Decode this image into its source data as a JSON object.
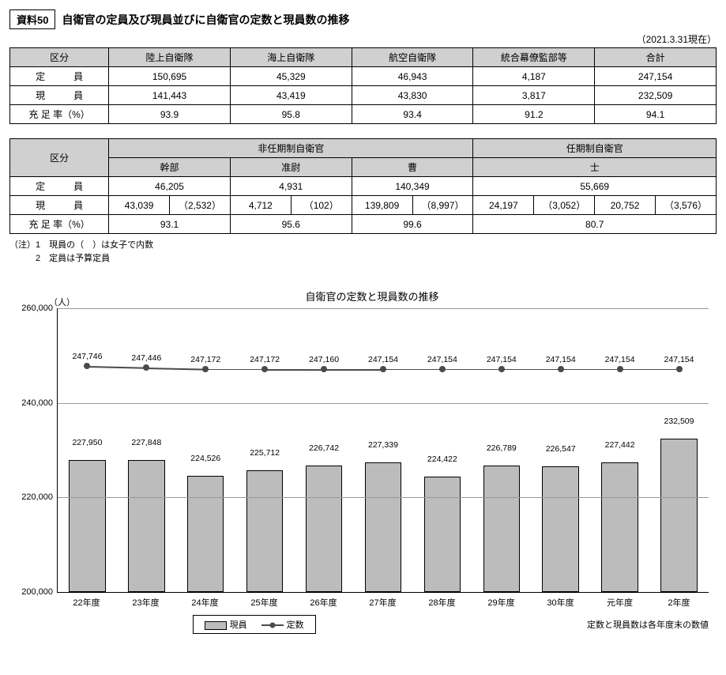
{
  "doc": {
    "label": "資料50",
    "title": "自衛官の定員及び現員並びに自衛官の定数と現員数の推移",
    "date_note": "（2021.3.31現在）"
  },
  "table1": {
    "col_headers": [
      "区分",
      "陸上自衛隊",
      "海上自衛隊",
      "航空自衛隊",
      "統合幕僚監部等",
      "合計"
    ],
    "rows": [
      {
        "label": "定　　　員",
        "cells": [
          "150,695",
          "45,329",
          "46,943",
          "4,187",
          "247,154"
        ]
      },
      {
        "label": "現　　　員",
        "cells": [
          "141,443",
          "43,419",
          "43,830",
          "3,817",
          "232,509"
        ]
      },
      {
        "label": "充 足 率（%）",
        "cells": [
          "93.9",
          "95.8",
          "93.4",
          "91.2",
          "94.1"
        ]
      }
    ]
  },
  "table2": {
    "kubun": "区分",
    "group_nonterm": "非任期制自衛官",
    "group_term": "任期制自衛官",
    "subheads": [
      "幹部",
      "准尉",
      "曹",
      "士"
    ],
    "teiin_label": "定　　　員",
    "teiin": [
      "46,205",
      "4,931",
      "140,349",
      "55,669"
    ],
    "genin_label": "現　　　員",
    "genin_pairs": [
      [
        "43,039",
        "（2,532）"
      ],
      [
        "4,712",
        "（102）"
      ],
      [
        "139,809",
        "（8,997）"
      ],
      [
        "24,197",
        "（3,052）"
      ],
      [
        "20,752",
        "（3,576）"
      ]
    ],
    "rate_label": "充 足 率（%）",
    "rates": [
      "93.1",
      "95.6",
      "99.6",
      "80.7"
    ]
  },
  "notes": {
    "n1": "（注）1　現員の（　）は女子で内数",
    "n2": "　　　2　定員は予算定員"
  },
  "chart": {
    "type": "bar+line",
    "y_unit": "（人）",
    "title": "自衛官の定数と現員数の推移",
    "ymin": 200000,
    "ymax": 260000,
    "yticks": [
      200000,
      220000,
      240000,
      260000
    ],
    "ytick_labels": [
      "200,000",
      "220,000",
      "240,000",
      "260,000"
    ],
    "categories": [
      "22年度",
      "23年度",
      "24年度",
      "25年度",
      "26年度",
      "27年度",
      "28年度",
      "29年度",
      "30年度",
      "元年度",
      "2年度"
    ],
    "bars": {
      "values": [
        227950,
        227848,
        224526,
        225712,
        226742,
        227339,
        224422,
        226789,
        226547,
        227442,
        232509
      ],
      "labels": [
        "227,950",
        "227,848",
        "224,526",
        "225,712",
        "226,742",
        "227,339",
        "224,422",
        "226,789",
        "226,547",
        "227,442",
        "232,509"
      ],
      "color": "#bcbcbc",
      "border": "#000000",
      "width": 0.62
    },
    "line": {
      "values": [
        247746,
        247446,
        247172,
        247172,
        247160,
        247154,
        247154,
        247154,
        247154,
        247154,
        247154
      ],
      "labels": [
        "247,746",
        "247,446",
        "247,172",
        "247,172",
        "247,160",
        "247,154",
        "247,154",
        "247,154",
        "247,154",
        "247,154",
        "247,154"
      ],
      "color": "#4a4a4a",
      "marker": "circle"
    },
    "legend": {
      "bar": "現員",
      "line": "定数"
    },
    "footnote": "定数と現員数は各年度末の数値",
    "background_color": "#ffffff",
    "grid_color": "#999999",
    "axis_color": "#000000",
    "label_fontsize": 11
  }
}
